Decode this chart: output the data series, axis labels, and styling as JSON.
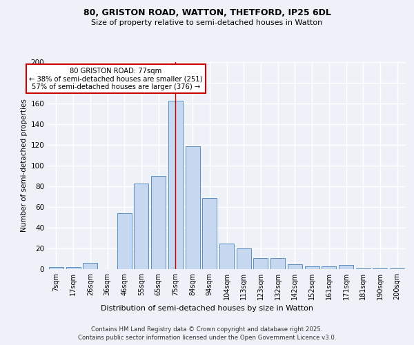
{
  "title1": "80, GRISTON ROAD, WATTON, THETFORD, IP25 6DL",
  "title2": "Size of property relative to semi-detached houses in Watton",
  "xlabel": "Distribution of semi-detached houses by size in Watton",
  "ylabel": "Number of semi-detached properties",
  "categories": [
    "7sqm",
    "17sqm",
    "26sqm",
    "36sqm",
    "46sqm",
    "55sqm",
    "65sqm",
    "75sqm",
    "84sqm",
    "94sqm",
    "104sqm",
    "113sqm",
    "123sqm",
    "132sqm",
    "142sqm",
    "152sqm",
    "161sqm",
    "171sqm",
    "181sqm",
    "190sqm",
    "200sqm"
  ],
  "values": [
    2,
    2,
    6,
    0,
    54,
    83,
    90,
    163,
    119,
    69,
    25,
    20,
    11,
    11,
    5,
    3,
    3,
    4,
    1,
    1,
    1
  ],
  "bar_color": "#c5d8f0",
  "bar_edge_color": "#5a8fc0",
  "property_bin_index": 7,
  "annotation_title": "80 GRISTON ROAD: 77sqm",
  "annotation_line1": "← 38% of semi-detached houses are smaller (251)",
  "annotation_line2": "57% of semi-detached houses are larger (376) →",
  "annotation_box_color": "#ffffff",
  "annotation_box_edge_color": "#cc0000",
  "vline_color": "#cc0000",
  "ylim": [
    0,
    200
  ],
  "yticks": [
    0,
    20,
    40,
    60,
    80,
    100,
    120,
    140,
    160,
    180,
    200
  ],
  "background_color": "#eef2f8",
  "grid_color": "#ffffff",
  "footer1": "Contains HM Land Registry data © Crown copyright and database right 2025.",
  "footer2": "Contains public sector information licensed under the Open Government Licence v3.0."
}
